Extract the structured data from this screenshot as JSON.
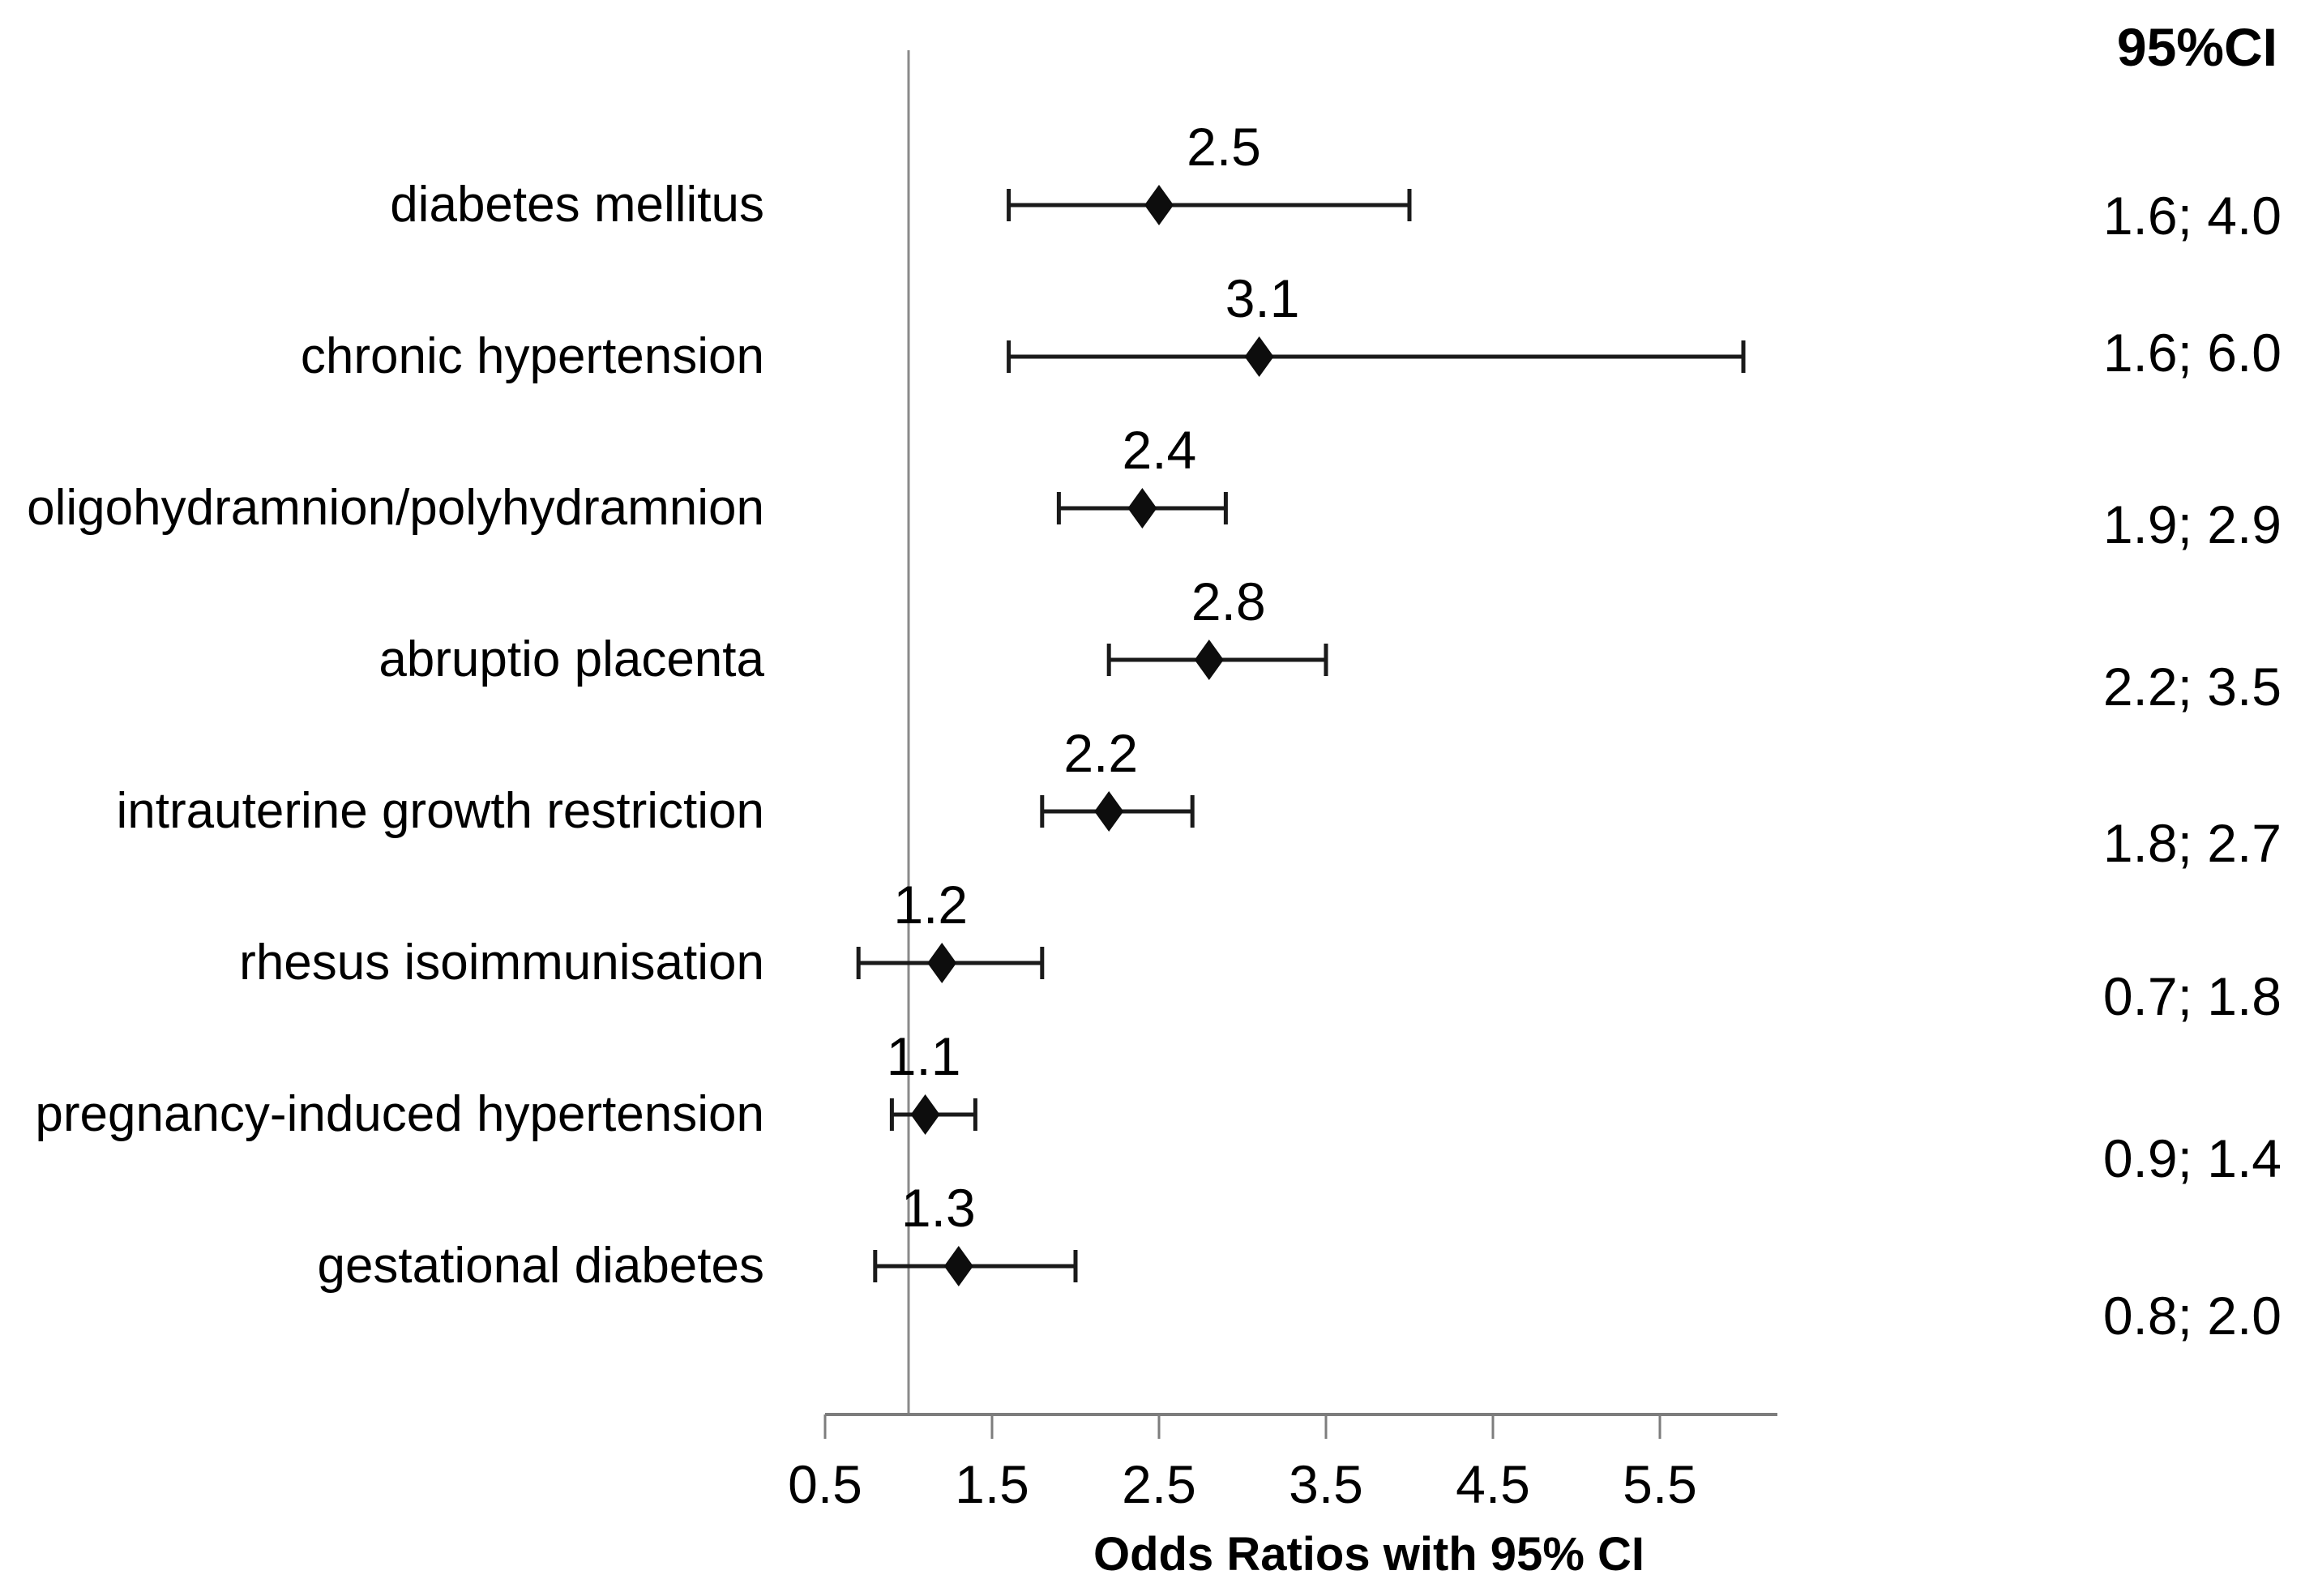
{
  "colors": {
    "background": "#ffffff",
    "text": "#000000",
    "axis_line": "#7d7d7d",
    "reference_line": "#8a8a8a",
    "error_bar": "#1a1a1a",
    "marker": "#0d0d0d"
  },
  "chart_data": {
    "type": "scatter",
    "subtype": "forest-plot",
    "title": "",
    "xlabel": "Odds Ratios with 95% CI",
    "ylabel": "",
    "ci_column_header": "95%CI",
    "x_ticks": [
      0.5,
      1.5,
      2.5,
      3.5,
      4.5,
      5.5
    ],
    "x_tick_labels": [
      "0.5",
      "1.5",
      "2.5",
      "3.5",
      "4.5",
      "5.5"
    ],
    "xlim": [
      0.5,
      6.2
    ],
    "reference_line_x": 1.0,
    "grid": false,
    "legend": false,
    "rows": [
      {
        "label": "diabetes mellitus",
        "or": 2.5,
        "ci_low": 1.6,
        "ci_high": 4.0,
        "or_label": "2.5",
        "ci_label": "1.6; 4.0"
      },
      {
        "label": "chronic hypertension",
        "or": 3.1,
        "ci_low": 1.6,
        "ci_high": 6.0,
        "or_label": "3.1",
        "ci_label": "1.6; 6.0"
      },
      {
        "label": "oligohydramnion/polyhydramnion",
        "or": 2.4,
        "ci_low": 1.9,
        "ci_high": 2.9,
        "or_label": "2.4",
        "ci_label": "1.9; 2.9"
      },
      {
        "label": "abruptio placenta",
        "or": 2.8,
        "ci_low": 2.2,
        "ci_high": 3.5,
        "or_label": "2.8",
        "ci_label": "2.2; 3.5"
      },
      {
        "label": "intrauterine growth restriction",
        "or": 2.2,
        "ci_low": 1.8,
        "ci_high": 2.7,
        "or_label": "2.2",
        "ci_label": "1.8; 2.7"
      },
      {
        "label": "rhesus isoimmunisation",
        "or": 1.2,
        "ci_low": 0.7,
        "ci_high": 1.8,
        "or_label": "1.2",
        "ci_label": "0.7; 1.8"
      },
      {
        "label": "pregnancy-induced hypertension",
        "or": 1.1,
        "ci_low": 0.9,
        "ci_high": 1.4,
        "or_label": "1.1",
        "ci_label": "0.9; 1.4"
      },
      {
        "label": "gestational diabetes",
        "or": 1.3,
        "ci_low": 0.8,
        "ci_high": 2.0,
        "or_label": "1.3",
        "ci_label": "0.8; 2.0"
      }
    ]
  }
}
